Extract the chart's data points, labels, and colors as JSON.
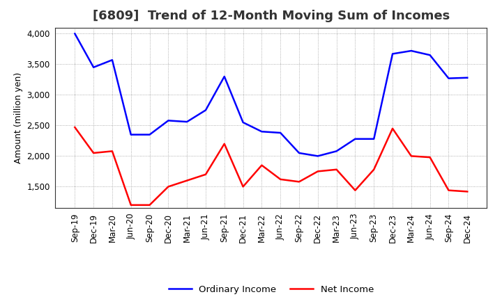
{
  "title": "[6809]  Trend of 12-Month Moving Sum of Incomes",
  "ylabel": "Amount (million yen)",
  "labels": [
    "Sep-19",
    "Dec-19",
    "Mar-20",
    "Jun-20",
    "Sep-20",
    "Dec-20",
    "Mar-21",
    "Jun-21",
    "Sep-21",
    "Dec-21",
    "Mar-22",
    "Jun-22",
    "Sep-22",
    "Dec-22",
    "Mar-23",
    "Jun-23",
    "Sep-23",
    "Dec-23",
    "Mar-24",
    "Jun-24",
    "Sep-24",
    "Dec-24"
  ],
  "ordinary_income": [
    4000,
    3450,
    3570,
    2350,
    2350,
    2580,
    2560,
    2750,
    3300,
    2550,
    2400,
    2380,
    2050,
    2000,
    2080,
    2280,
    2280,
    3670,
    3720,
    3650,
    3270,
    3280
  ],
  "net_income": [
    2470,
    2050,
    2080,
    1200,
    1200,
    1500,
    1600,
    1700,
    2200,
    1500,
    1850,
    1620,
    1580,
    1750,
    1780,
    1440,
    1780,
    2450,
    2000,
    1980,
    1440,
    1420
  ],
  "ordinary_color": "#0000ff",
  "net_color": "#ff0000",
  "ylim_min": 1150,
  "ylim_max": 4100,
  "yticks": [
    1500,
    2000,
    2500,
    3000,
    3500,
    4000
  ],
  "background_color": "#ffffff",
  "grid_color": "#999999",
  "title_fontsize": 13,
  "title_color": "#333333",
  "axis_fontsize": 9,
  "tick_fontsize": 8.5,
  "legend_ordinary": "Ordinary Income",
  "legend_net": "Net Income",
  "line_width": 1.8
}
